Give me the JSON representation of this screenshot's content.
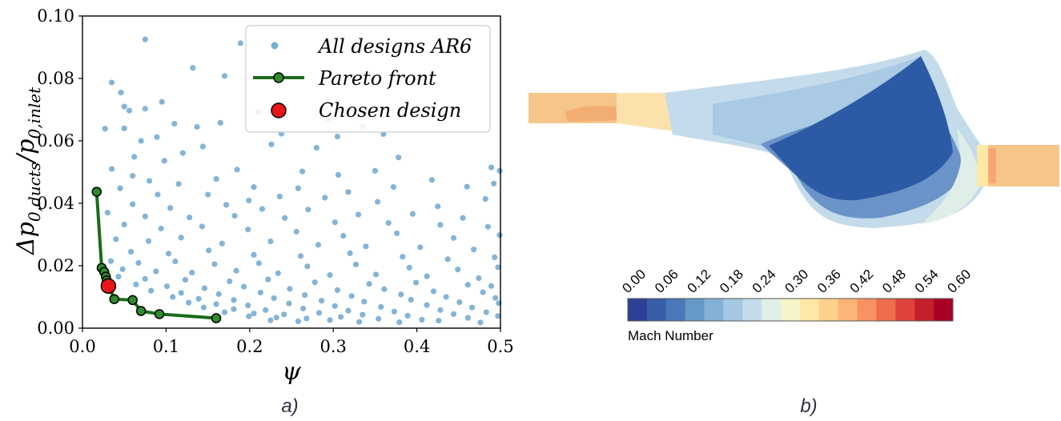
{
  "chart_data": [
    {
      "type": "scatter",
      "panel_caption": "a)",
      "xlabel": "ψ",
      "ylabel_main": "Δp",
      "ylabel_num_sub": "0,ducts",
      "ylabel_den": "p",
      "ylabel_den_sub": "0,inlet",
      "xlim": [
        0.0,
        0.5
      ],
      "ylim": [
        0.0,
        0.1
      ],
      "xticks": [
        "0.0",
        "0.1",
        "0.2",
        "0.3",
        "0.4",
        "0.5"
      ],
      "yticks": [
        "0.00",
        "0.02",
        "0.04",
        "0.06",
        "0.08",
        "0.10"
      ],
      "legend_position": "top-right",
      "legend": [
        "All designs AR6",
        "Pareto front",
        "Chosen design"
      ],
      "colors": {
        "scatter": "#1f77b4",
        "pareto_line": "#1a6b1a",
        "pareto_marker": "#2e8b2e",
        "chosen": "#e8141a"
      },
      "series": [
        {
          "name": "All designs AR6",
          "points": [
            [
              0.075,
              0.0925
            ],
            [
              0.189,
              0.0913
            ],
            [
              0.295,
              0.0914
            ],
            [
              0.132,
              0.0834
            ],
            [
              0.035,
              0.0787
            ],
            [
              0.17,
              0.0808
            ],
            [
              0.046,
              0.0755
            ],
            [
              0.095,
              0.0725
            ],
            [
              0.05,
              0.071
            ],
            [
              0.075,
              0.0703
            ],
            [
              0.056,
              0.0697
            ],
            [
              0.137,
              0.0645
            ],
            [
              0.165,
              0.0658
            ],
            [
              0.21,
              0.0692
            ],
            [
              0.238,
              0.0623
            ],
            [
              0.294,
              0.067
            ],
            [
              0.335,
              0.0646
            ],
            [
              0.36,
              0.0622
            ],
            [
              0.401,
              0.0688
            ],
            [
              0.05,
              0.064
            ],
            [
              0.027,
              0.0639
            ],
            [
              0.11,
              0.0655
            ],
            [
              0.07,
              0.06
            ],
            [
              0.089,
              0.0612
            ],
            [
              0.144,
              0.0582
            ],
            [
              0.226,
              0.0589
            ],
            [
              0.28,
              0.0578
            ],
            [
              0.305,
              0.0614
            ],
            [
              0.378,
              0.0547
            ],
            [
              0.489,
              0.0515
            ],
            [
              0.062,
              0.0549
            ],
            [
              0.098,
              0.0536
            ],
            [
              0.12,
              0.0561
            ],
            [
              0.185,
              0.0508
            ],
            [
              0.263,
              0.0502
            ],
            [
              0.306,
              0.0491
            ],
            [
              0.35,
              0.0504
            ],
            [
              0.418,
              0.0475
            ],
            [
              0.499,
              0.0504
            ],
            [
              0.035,
              0.051
            ],
            [
              0.06,
              0.0488
            ],
            [
              0.08,
              0.0472
            ],
            [
              0.115,
              0.0462
            ],
            [
              0.16,
              0.0478
            ],
            [
              0.205,
              0.0452
            ],
            [
              0.258,
              0.0448
            ],
            [
              0.318,
              0.0436
            ],
            [
              0.372,
              0.0452
            ],
            [
              0.46,
              0.0453
            ],
            [
              0.492,
              0.0463
            ],
            [
              0.045,
              0.0448
            ],
            [
              0.09,
              0.0428
            ],
            [
              0.15,
              0.0428
            ],
            [
              0.199,
              0.0409
            ],
            [
              0.236,
              0.0422
            ],
            [
              0.29,
              0.0418
            ],
            [
              0.353,
              0.0405
            ],
            [
              0.425,
              0.039
            ],
            [
              0.482,
              0.0414
            ],
            [
              0.06,
              0.0397
            ],
            [
              0.105,
              0.0385
            ],
            [
              0.172,
              0.0395
            ],
            [
              0.215,
              0.0382
            ],
            [
              0.27,
              0.038
            ],
            [
              0.33,
              0.0364
            ],
            [
              0.395,
              0.0366
            ],
            [
              0.455,
              0.0353
            ],
            [
              0.03,
              0.037
            ],
            [
              0.075,
              0.0358
            ],
            [
              0.128,
              0.0355
            ],
            [
              0.182,
              0.036
            ],
            [
              0.242,
              0.0353
            ],
            [
              0.302,
              0.0339
            ],
            [
              0.366,
              0.0337
            ],
            [
              0.428,
              0.0331
            ],
            [
              0.485,
              0.0325
            ],
            [
              0.05,
              0.0332
            ],
            [
              0.094,
              0.0319
            ],
            [
              0.143,
              0.0326
            ],
            [
              0.198,
              0.0316
            ],
            [
              0.256,
              0.0309
            ],
            [
              0.312,
              0.0296
            ],
            [
              0.376,
              0.0304
            ],
            [
              0.444,
              0.0289
            ],
            [
              0.499,
              0.0298
            ],
            [
              0.04,
              0.0285
            ],
            [
              0.079,
              0.0279
            ],
            [
              0.118,
              0.029
            ],
            [
              0.167,
              0.0271
            ],
            [
              0.225,
              0.0278
            ],
            [
              0.282,
              0.0267
            ],
            [
              0.339,
              0.0262
            ],
            [
              0.404,
              0.0259
            ],
            [
              0.468,
              0.0252
            ],
            [
              0.058,
              0.0245
            ],
            [
              0.103,
              0.0239
            ],
            [
              0.151,
              0.0249
            ],
            [
              0.205,
              0.0235
            ],
            [
              0.261,
              0.0231
            ],
            [
              0.32,
              0.024
            ],
            [
              0.383,
              0.0229
            ],
            [
              0.437,
              0.0221
            ],
            [
              0.493,
              0.0227
            ],
            [
              0.034,
              0.0215
            ],
            [
              0.067,
              0.0209
            ],
            [
              0.111,
              0.0214
            ],
            [
              0.158,
              0.0205
            ],
            [
              0.211,
              0.0208
            ],
            [
              0.269,
              0.0198
            ],
            [
              0.327,
              0.0204
            ],
            [
              0.391,
              0.0194
            ],
            [
              0.449,
              0.0188
            ],
            [
              0.497,
              0.0195
            ],
            [
              0.048,
              0.0189
            ],
            [
              0.088,
              0.0182
            ],
            [
              0.131,
              0.0178
            ],
            [
              0.184,
              0.0184
            ],
            [
              0.234,
              0.0176
            ],
            [
              0.296,
              0.017
            ],
            [
              0.351,
              0.0172
            ],
            [
              0.412,
              0.0166
            ],
            [
              0.474,
              0.016
            ],
            [
              0.043,
              0.0165
            ],
            [
              0.075,
              0.0158
            ],
            [
              0.123,
              0.0155
            ],
            [
              0.176,
              0.015
            ],
            [
              0.222,
              0.0156
            ],
            [
              0.278,
              0.0147
            ],
            [
              0.343,
              0.0142
            ],
            [
              0.399,
              0.0146
            ],
            [
              0.461,
              0.0139
            ],
            [
              0.489,
              0.0135
            ],
            [
              0.064,
              0.014
            ],
            [
              0.101,
              0.0134
            ],
            [
              0.146,
              0.0128
            ],
            [
              0.193,
              0.0133
            ],
            [
              0.248,
              0.0126
            ],
            [
              0.305,
              0.0122
            ],
            [
              0.361,
              0.0125
            ],
            [
              0.42,
              0.0118
            ],
            [
              0.479,
              0.0115
            ],
            [
              0.082,
              0.012
            ],
            [
              0.118,
              0.0113
            ],
            [
              0.163,
              0.0109
            ],
            [
              0.213,
              0.0114
            ],
            [
              0.266,
              0.0106
            ],
            [
              0.322,
              0.0103
            ],
            [
              0.381,
              0.0108
            ],
            [
              0.435,
              0.01
            ],
            [
              0.494,
              0.0097
            ],
            [
              0.108,
              0.01
            ],
            [
              0.139,
              0.0094
            ],
            [
              0.181,
              0.009
            ],
            [
              0.229,
              0.0096
            ],
            [
              0.286,
              0.0088
            ],
            [
              0.337,
              0.0085
            ],
            [
              0.393,
              0.0091
            ],
            [
              0.451,
              0.0083
            ],
            [
              0.498,
              0.008
            ],
            [
              0.127,
              0.0082
            ],
            [
              0.16,
              0.0077
            ],
            [
              0.198,
              0.0073
            ],
            [
              0.247,
              0.0079
            ],
            [
              0.302,
              0.0071
            ],
            [
              0.357,
              0.0068
            ],
            [
              0.412,
              0.0074
            ],
            [
              0.466,
              0.0066
            ],
            [
              0.145,
              0.0066
            ],
            [
              0.181,
              0.0061
            ],
            [
              0.219,
              0.0058
            ],
            [
              0.264,
              0.0063
            ],
            [
              0.318,
              0.0056
            ],
            [
              0.373,
              0.0053
            ],
            [
              0.428,
              0.0058
            ],
            [
              0.483,
              0.0051
            ],
            [
              0.17,
              0.0051
            ],
            [
              0.205,
              0.0047
            ],
            [
              0.241,
              0.0044
            ],
            [
              0.283,
              0.0049
            ],
            [
              0.335,
              0.0043
            ],
            [
              0.389,
              0.004
            ],
            [
              0.444,
              0.0045
            ],
            [
              0.497,
              0.0039
            ],
            [
              0.199,
              0.0038
            ],
            [
              0.232,
              0.0034
            ],
            [
              0.268,
              0.0031
            ],
            [
              0.309,
              0.0036
            ],
            [
              0.354,
              0.003
            ],
            [
              0.406,
              0.0027
            ],
            [
              0.461,
              0.0033
            ],
            [
              0.225,
              0.0025
            ],
            [
              0.258,
              0.0022
            ],
            [
              0.296,
              0.0026
            ],
            [
              0.331,
              0.002
            ],
            [
              0.379,
              0.0019
            ],
            [
              0.426,
              0.0024
            ],
            [
              0.476,
              0.0018
            ]
          ]
        },
        {
          "name": "Pareto front",
          "points": [
            [
              0.017,
              0.0437
            ],
            [
              0.023,
              0.0193
            ],
            [
              0.026,
              0.018
            ],
            [
              0.028,
              0.0165
            ],
            [
              0.029,
              0.0153
            ],
            [
              0.038,
              0.0093
            ],
            [
              0.06,
              0.009
            ],
            [
              0.07,
              0.0055
            ],
            [
              0.092,
              0.0045
            ],
            [
              0.16,
              0.0032
            ]
          ]
        },
        {
          "name": "Chosen design",
          "points": [
            [
              0.031,
              0.0135
            ]
          ]
        }
      ]
    },
    {
      "type": "heatmap",
      "panel_caption": "b)",
      "colorbar_title": "Mach Number",
      "colorbar_ticks": [
        "0.00",
        "0.06",
        "0.12",
        "0.18",
        "0.24",
        "0.30",
        "0.36",
        "0.42",
        "0.48",
        "0.54",
        "0.60"
      ],
      "colorbar_range": [
        0.0,
        0.6
      ],
      "colorbar_colors": [
        "#2e3f97",
        "#3a5da8",
        "#4a78b8",
        "#6699c8",
        "#84b1d6",
        "#a4c8e2",
        "#c3dbea",
        "#dfeee7",
        "#f6f4c8",
        "#fde8a6",
        "#fdd18b",
        "#fcb577",
        "#f99262",
        "#ef6c4d",
        "#dd433a",
        "#c51f2d",
        "#a90026"
      ],
      "colors": {
        "inlet_duct": "#f6c58a",
        "inlet_core": "#f2ad72",
        "diffuser_light": "#c7dcec",
        "diffuser_mid": "#6a93c8",
        "diffuser_dark": "#2c5aa5",
        "outlet_duct": "#f6c58a"
      }
    }
  ]
}
